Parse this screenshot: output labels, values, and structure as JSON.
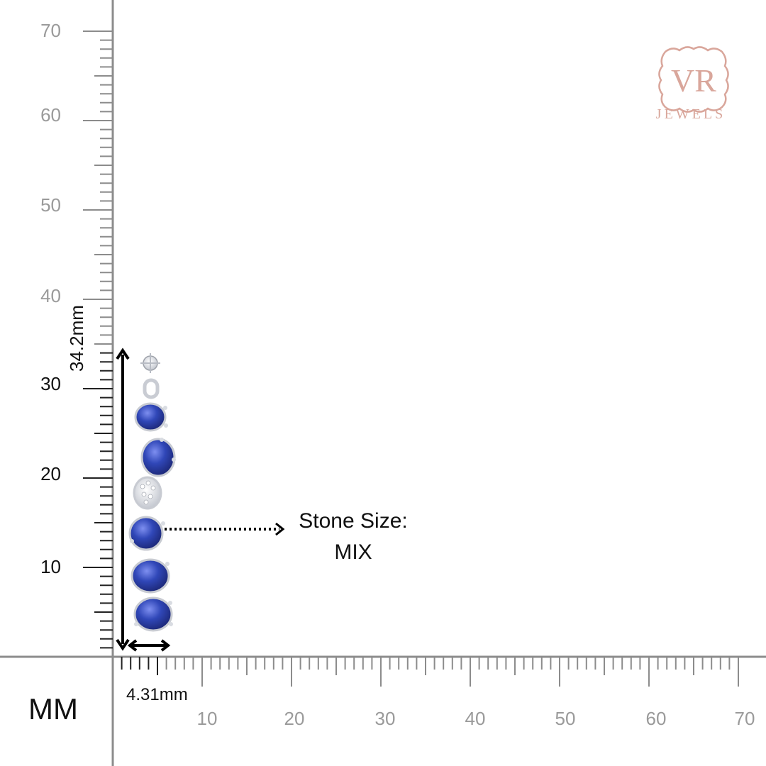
{
  "unit_label": "MM",
  "y_axis_labels": [
    {
      "value": "70",
      "color": "#9a9a9a"
    },
    {
      "value": "60",
      "color": "#9a9a9a"
    },
    {
      "value": "50",
      "color": "#9a9a9a"
    },
    {
      "value": "40",
      "color": "#9a9a9a"
    },
    {
      "value": "30",
      "color": "#111111"
    },
    {
      "value": "20",
      "color": "#111111"
    },
    {
      "value": "10",
      "color": "#111111"
    }
  ],
  "x_axis_labels": [
    {
      "value": "10",
      "color": "#9a9a9a"
    },
    {
      "value": "20",
      "color": "#9a9a9a"
    },
    {
      "value": "30",
      "color": "#9a9a9a"
    },
    {
      "value": "40",
      "color": "#9a9a9a"
    },
    {
      "value": "50",
      "color": "#9a9a9a"
    },
    {
      "value": "60",
      "color": "#9a9a9a"
    },
    {
      "value": "70",
      "color": "#9a9a9a"
    }
  ],
  "dimensions": {
    "height": "34.2mm",
    "width": "4.31mm"
  },
  "stone_size": {
    "label": "Stone Size:",
    "value": "MIX"
  },
  "brand": {
    "monogram": "VR",
    "name": "JEWELS",
    "color": "#d9a69b"
  },
  "colors": {
    "ruler_dark": "#222222",
    "ruler_light": "#9a9a9a",
    "sapphire": "#2b3fa8",
    "metal": "#cfcfd4"
  }
}
